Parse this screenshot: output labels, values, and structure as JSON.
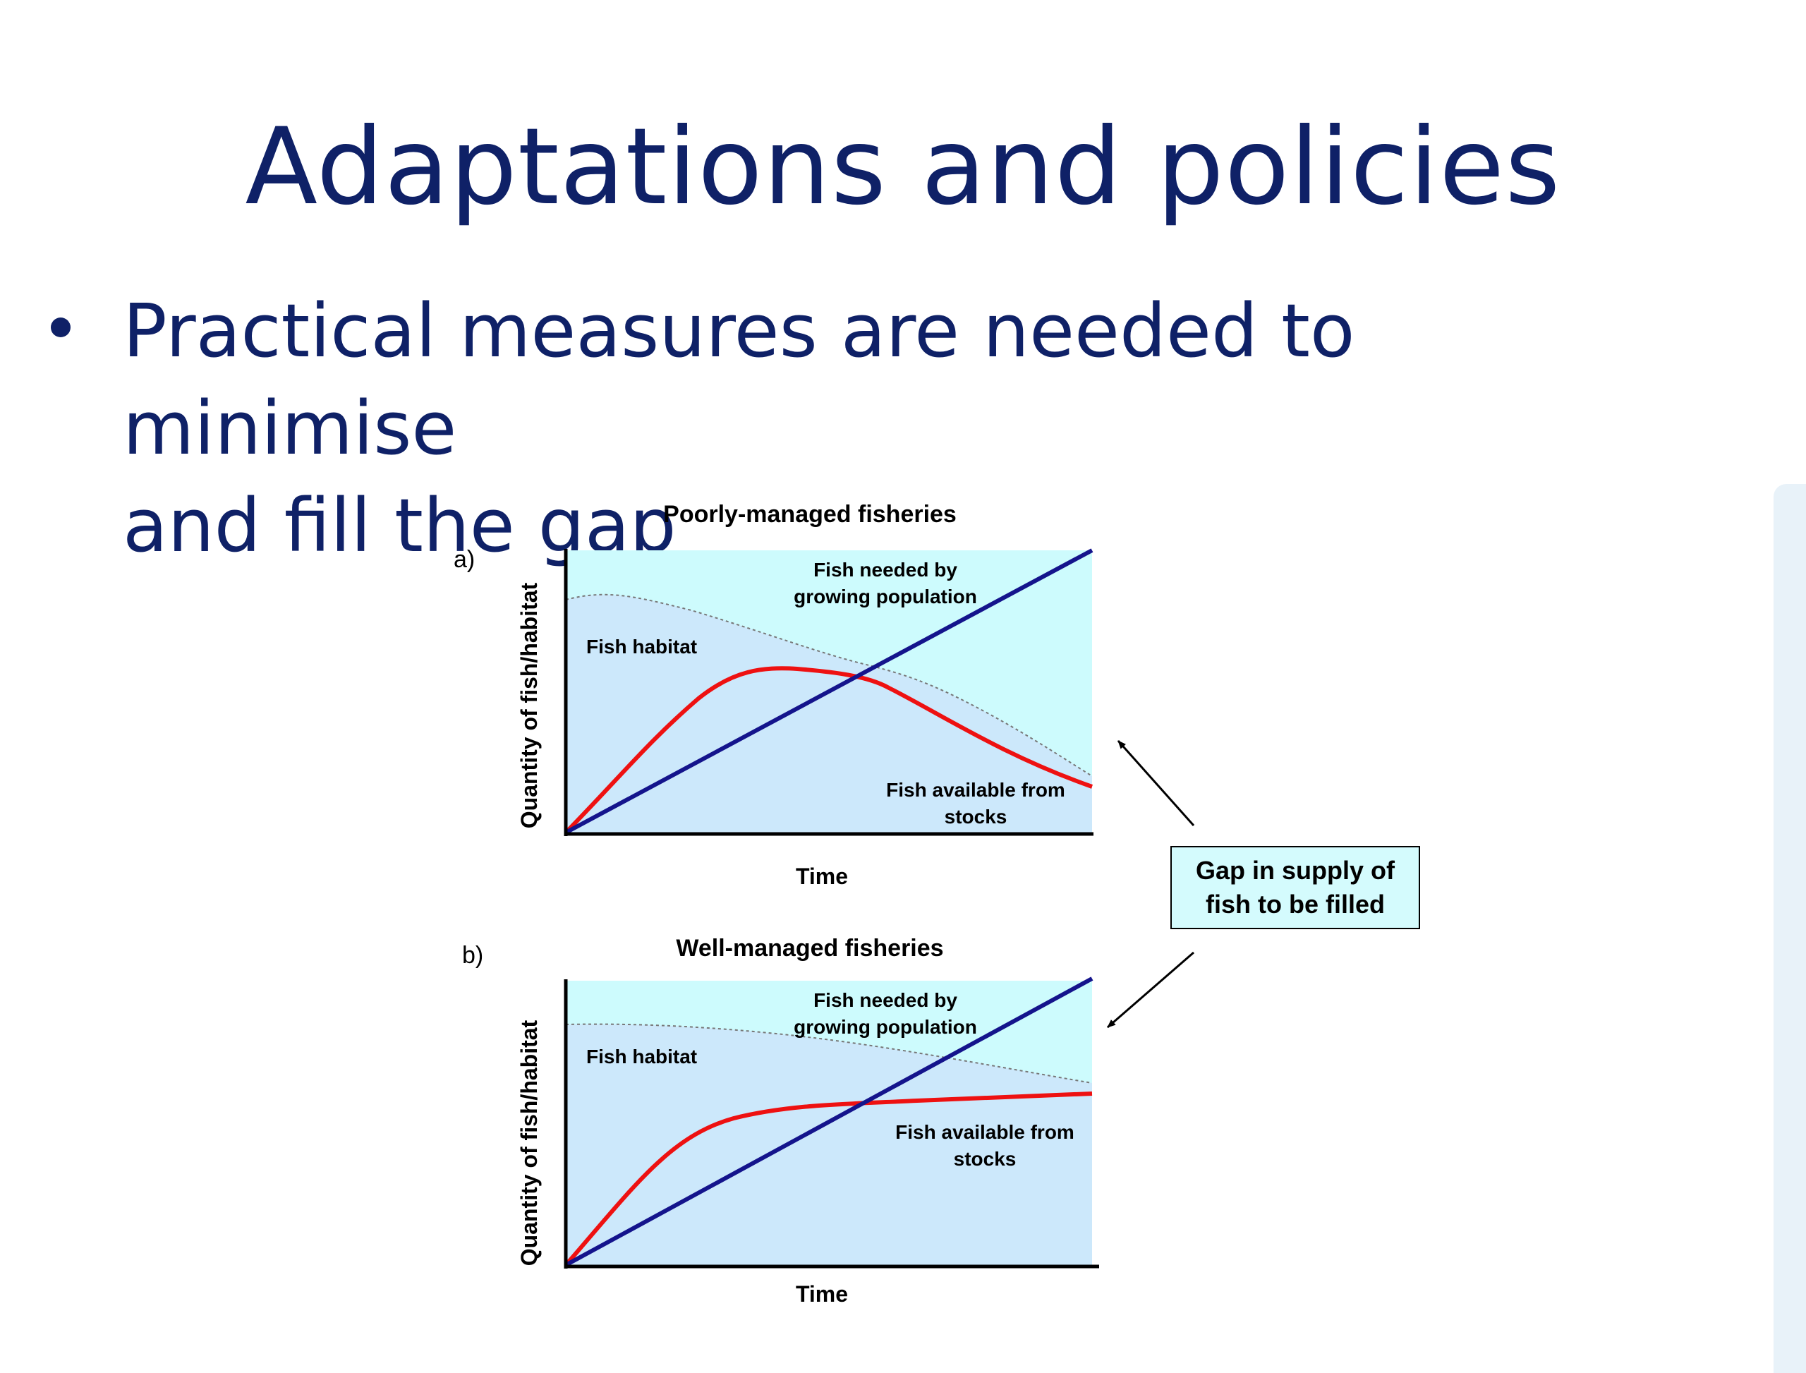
{
  "slide": {
    "title": "Adaptations and policies",
    "bullet_line1": "Practical measures are needed to minimise",
    "bullet_line2": "and fill the gap"
  },
  "colors": {
    "title_text": "#0f2167",
    "habitat_fill": "#cce8fb",
    "sky_fill": "#cdfbfd",
    "supply_line": "#ee1111",
    "demand_line": "#14148c",
    "callout_fill": "#d4fbfd"
  },
  "figure": {
    "panel_a": {
      "letter": "a)",
      "title": "Poorly-managed fisheries",
      "ylabel": "Quantity of fish/habitat",
      "xlabel": "Time",
      "label_needed_1": "Fish needed by",
      "label_needed_2": "growing population",
      "label_habitat": "Fish habitat",
      "label_available_1": "Fish available from",
      "label_available_2": "stocks"
    },
    "panel_b": {
      "letter": "b)",
      "title": "Well-managed fisheries",
      "ylabel": "Quantity of fish/habitat",
      "xlabel": "Time",
      "label_needed_1": "Fish needed by",
      "label_needed_2": "growing population",
      "label_habitat": "Fish habitat",
      "label_available_1": "Fish available from",
      "label_available_2": "stocks"
    },
    "callout": {
      "line1": "Gap in supply of",
      "line2": "fish to be filled"
    }
  }
}
